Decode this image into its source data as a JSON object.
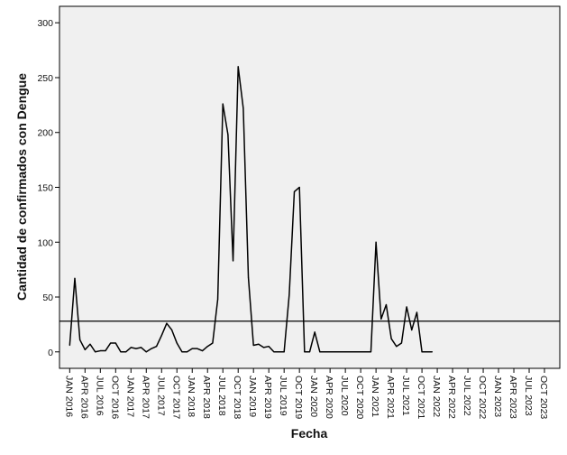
{
  "chart_data": {
    "type": "line",
    "title": "",
    "xlabel": "Fecha",
    "ylabel": "Cantidad de confirmados con Dengue",
    "ylim": [
      -15,
      315
    ],
    "yticks": [
      0,
      50,
      100,
      150,
      200,
      250,
      300
    ],
    "xlim": [
      "2015-11",
      "2024-01"
    ],
    "xtick_labels": [
      "JAN 2016",
      "APR 2016",
      "JUL 2016",
      "OCT 2016",
      "JAN 2017",
      "APR 2017",
      "JUL 2017",
      "OCT 2017",
      "JAN 2018",
      "APR 2018",
      "JUL 2018",
      "OCT 2018",
      "JAN 2019",
      "APR 2019",
      "JUL 2019",
      "OCT 2019",
      "JAN 2020",
      "APR 2020",
      "JUL 2020",
      "OCT 2020",
      "JAN 2021",
      "APR 2021",
      "JUL 2021",
      "OCT 2021",
      "JAN 2022",
      "APR 2022",
      "JUL 2022",
      "OCT 2022",
      "JAN 2023",
      "APR 2023",
      "JUL 2023",
      "OCT 2023"
    ],
    "grid": false,
    "background": "#f0f0f0",
    "line_color": "#000000",
    "reference_line": {
      "y": 28
    },
    "series": [
      {
        "x": [
          "2016-01",
          "2016-02",
          "2016-03",
          "2016-04",
          "2016-05",
          "2016-06",
          "2016-07",
          "2016-08",
          "2016-09",
          "2016-10",
          "2016-11",
          "2016-12",
          "2017-01",
          "2017-02",
          "2017-03",
          "2017-04",
          "2017-05",
          "2017-06",
          "2017-07",
          "2017-08",
          "2017-09",
          "2017-10",
          "2017-11",
          "2017-12",
          "2018-01",
          "2018-02",
          "2018-03",
          "2018-04",
          "2018-05",
          "2018-06",
          "2018-07",
          "2018-08",
          "2018-09",
          "2018-10",
          "2018-11",
          "2018-12",
          "2019-01",
          "2019-02",
          "2019-03",
          "2019-04",
          "2019-05",
          "2019-06",
          "2019-07",
          "2019-08",
          "2019-09",
          "2019-10",
          "2019-11",
          "2019-12",
          "2020-01",
          "2020-02",
          "2020-03",
          "2020-04",
          "2020-05",
          "2020-06",
          "2020-07",
          "2020-08",
          "2020-09",
          "2020-10",
          "2020-11",
          "2020-12",
          "2021-01",
          "2021-02",
          "2021-03",
          "2021-04",
          "2021-05",
          "2021-06",
          "2021-07",
          "2021-08",
          "2021-09",
          "2021-10",
          "2021-11",
          "2021-12"
        ],
        "values": [
          6,
          67,
          11,
          2,
          7,
          0,
          1,
          1,
          8,
          8,
          0,
          0,
          4,
          3,
          4,
          0,
          3,
          5,
          15,
          26,
          20,
          8,
          0,
          0,
          3,
          3,
          1,
          5,
          8,
          48,
          226,
          198,
          83,
          260,
          222,
          68,
          6,
          7,
          4,
          5,
          0,
          0,
          0,
          52,
          146,
          150,
          0,
          0,
          18,
          0,
          0,
          0,
          0,
          0,
          0,
          0,
          0,
          0,
          0,
          0,
          100,
          30,
          43,
          12,
          5,
          8,
          41,
          20,
          36,
          0,
          0,
          0
        ]
      }
    ]
  }
}
